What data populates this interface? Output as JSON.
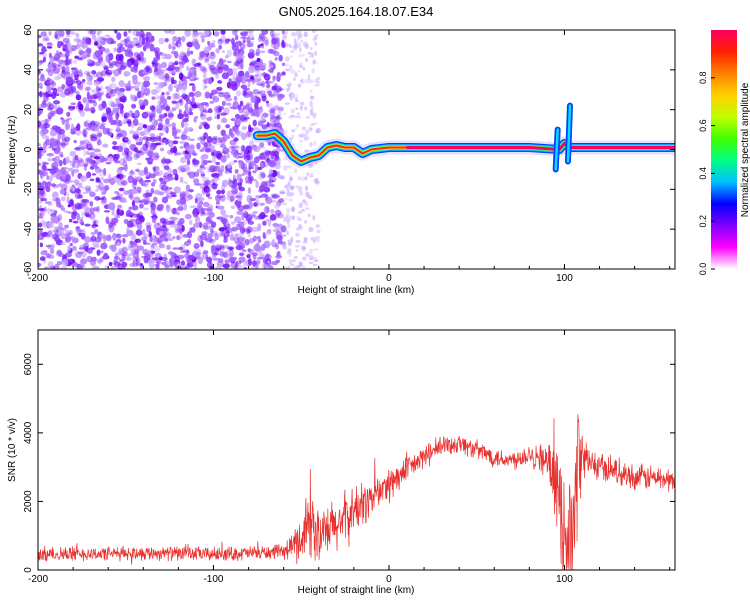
{
  "figure_title": "GN05.2025.164.18.07.E34",
  "chart_data": [
    {
      "type": "heatmap",
      "title": "",
      "xlabel": "Height of straight line (km)",
      "ylabel": "Frequency (Hz)",
      "xlim": [
        -200,
        163
      ],
      "ylim": [
        -60,
        60
      ],
      "x_ticks": [
        "-200",
        "-100",
        "0",
        "100"
      ],
      "y_ticks": [
        "60",
        "40",
        "20",
        "0",
        "-20",
        "-40",
        "-60"
      ],
      "colorbar": {
        "label": "Normalized spectral amplitude",
        "range": [
          0,
          1
        ],
        "ticks": [
          "0.0",
          "0.2",
          "0.4",
          "0.6",
          "0.8"
        ],
        "colormap": [
          "#ffffff",
          "#ff00ff",
          "#8000ff",
          "#0000ff",
          "#00c0ff",
          "#00ff80",
          "#40ff00",
          "#c0ff00",
          "#ffd000",
          "#ff8000",
          "#ff2000",
          "#ff0060"
        ]
      },
      "noise_region": {
        "x_from": -200,
        "x_to": -60,
        "amplitude": 0.15
      },
      "noise_tail": {
        "x_from": -60,
        "x_to": -40,
        "amplitude": 0.05
      },
      "track": [
        {
          "x": -75,
          "y": 7
        },
        {
          "x": -70,
          "y": 7
        },
        {
          "x": -65,
          "y": 8
        },
        {
          "x": -60,
          "y": 4
        },
        {
          "x": -55,
          "y": -3
        },
        {
          "x": -50,
          "y": -6
        },
        {
          "x": -45,
          "y": -4
        },
        {
          "x": -40,
          "y": -3
        },
        {
          "x": -35,
          "y": 1
        },
        {
          "x": -30,
          "y": 2
        },
        {
          "x": -25,
          "y": 1
        },
        {
          "x": -20,
          "y": 1
        },
        {
          "x": -15,
          "y": -2
        },
        {
          "x": -10,
          "y": 0
        },
        {
          "x": 0,
          "y": 1
        },
        {
          "x": 10,
          "y": 1
        },
        {
          "x": 40,
          "y": 1
        },
        {
          "x": 80,
          "y": 1
        },
        {
          "x": 97,
          "y": 0
        },
        {
          "x": 100,
          "y": 3
        },
        {
          "x": 103,
          "y": 1
        },
        {
          "x": 130,
          "y": 1
        },
        {
          "x": 163,
          "y": 1
        }
      ],
      "spikes": [
        {
          "x": 95,
          "y_from": -10,
          "y_to": 10
        },
        {
          "x": 102,
          "y_from": -6,
          "y_to": 22
        }
      ]
    },
    {
      "type": "line",
      "title": "",
      "xlabel": "Height of straight line (km)",
      "ylabel": "SNR (10 * v/v)",
      "xlim": [
        -200,
        163
      ],
      "ylim": [
        0,
        7000
      ],
      "x_ticks": [
        "-200",
        "-100",
        "0",
        "100"
      ],
      "y_ticks": [
        "0",
        "2000",
        "4000",
        "6000"
      ],
      "series": [
        {
          "color": "#e8302e",
          "x": [
            -200,
            -180,
            -160,
            -140,
            -120,
            -100,
            -80,
            -60,
            -50,
            -45,
            -40,
            -30,
            -20,
            -10,
            0,
            10,
            20,
            30,
            40,
            50,
            60,
            70,
            80,
            90,
            95,
            100,
            105,
            108,
            110,
            115,
            120,
            130,
            140,
            150,
            163
          ],
          "y": [
            450,
            480,
            470,
            500,
            480,
            460,
            490,
            520,
            900,
            1600,
            900,
            1300,
            1700,
            2100,
            2500,
            2900,
            3300,
            3600,
            3700,
            3500,
            3300,
            3200,
            3400,
            3200,
            2500,
            1200,
            900,
            3500,
            3300,
            3100,
            3000,
            2900,
            2700,
            2700,
            2600
          ],
          "noise": [
            250,
            250,
            250,
            250,
            250,
            250,
            250,
            250,
            800,
            1500,
            900,
            1000,
            900,
            700,
            600,
            450,
            400,
            400,
            350,
            350,
            350,
            350,
            400,
            600,
            1200,
            2000,
            2200,
            2200,
            900,
            600,
            500,
            450,
            450,
            450,
            400
          ]
        }
      ]
    }
  ]
}
